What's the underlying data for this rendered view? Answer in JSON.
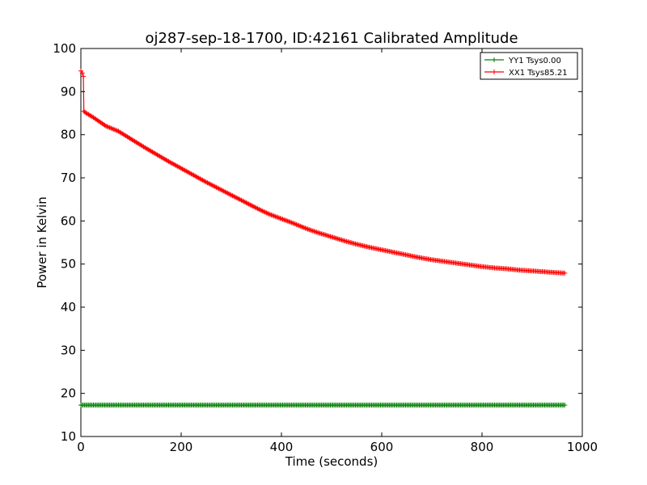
{
  "chart_data": {
    "type": "line",
    "title": "oj287-sep-18-1700, ID:42161 Calibrated Amplitude",
    "xlabel": "Time (seconds)",
    "ylabel": "Power in Kelvin",
    "xlim": [
      0,
      1000
    ],
    "ylim": [
      10,
      100
    ],
    "xticks": [
      0,
      200,
      400,
      600,
      800,
      1000
    ],
    "yticks": [
      10,
      20,
      30,
      40,
      50,
      60,
      70,
      80,
      90,
      100
    ],
    "grid": false,
    "legend_position": "top-right",
    "series": [
      {
        "name": "YY1 Tsys0.00",
        "color": "#008000",
        "marker": "+",
        "x": [
          0,
          50,
          100,
          150,
          200,
          250,
          300,
          350,
          400,
          450,
          500,
          550,
          600,
          650,
          700,
          750,
          800,
          850,
          900,
          965
        ],
        "y": [
          17.3,
          17.3,
          17.3,
          17.3,
          17.3,
          17.3,
          17.3,
          17.3,
          17.3,
          17.3,
          17.3,
          17.3,
          17.3,
          17.3,
          17.3,
          17.3,
          17.3,
          17.3,
          17.3,
          17.3
        ]
      },
      {
        "name": "XX1 Tsys85.21",
        "color": "#ff0000",
        "marker": "+",
        "x": [
          0,
          3,
          5,
          6,
          8,
          25,
          50,
          75,
          100,
          125,
          150,
          175,
          200,
          225,
          250,
          275,
          300,
          325,
          350,
          375,
          400,
          425,
          450,
          475,
          500,
          525,
          550,
          575,
          600,
          625,
          650,
          675,
          700,
          725,
          750,
          775,
          800,
          825,
          850,
          875,
          900,
          925,
          950,
          965
        ],
        "y": [
          94.8,
          94.3,
          93.5,
          85.5,
          85.2,
          84.0,
          82.0,
          80.8,
          79.0,
          77.2,
          75.5,
          73.8,
          72.2,
          70.6,
          69.0,
          67.5,
          66.0,
          64.5,
          63.0,
          61.6,
          60.5,
          59.4,
          58.2,
          57.2,
          56.3,
          55.4,
          54.6,
          53.9,
          53.3,
          52.7,
          52.1,
          51.5,
          51.0,
          50.6,
          50.2,
          49.8,
          49.4,
          49.1,
          48.9,
          48.6,
          48.4,
          48.2,
          48.0,
          47.9
        ]
      }
    ]
  }
}
